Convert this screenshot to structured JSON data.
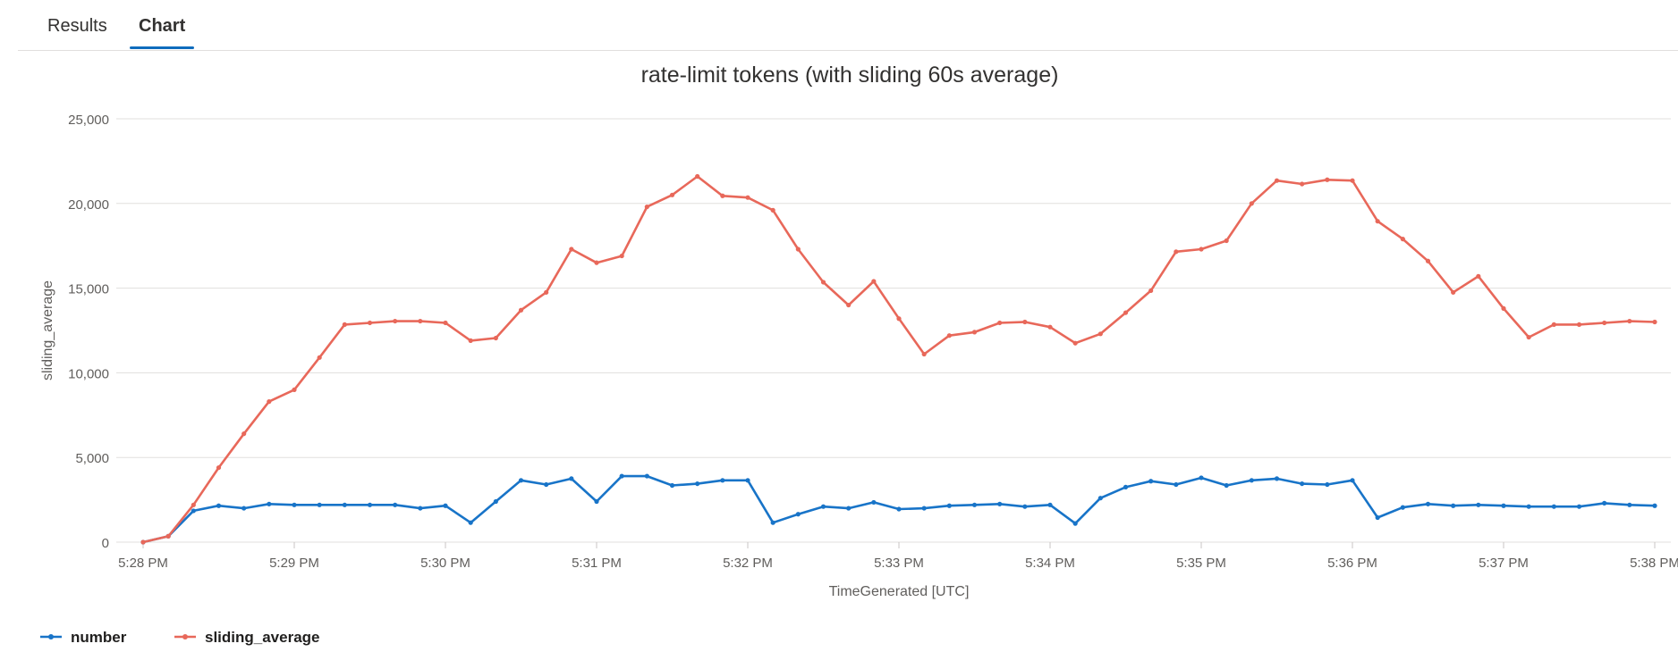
{
  "tabs": [
    {
      "label": "Results",
      "active": false
    },
    {
      "label": "Chart",
      "active": true
    }
  ],
  "chart_data": {
    "type": "line",
    "title": "rate-limit tokens (with sliding 60s average)",
    "xlabel": "TimeGenerated [UTC]",
    "ylabel": "sliding_average",
    "ylim": [
      0,
      25000
    ],
    "yticks": [
      0,
      5000,
      10000,
      15000,
      20000,
      25000
    ],
    "ytick_labels": [
      "0",
      "5,000",
      "10,000",
      "15,000",
      "20,000",
      "25,000"
    ],
    "xticks": [
      "5:28 PM",
      "5:29 PM",
      "5:30 PM",
      "5:31 PM",
      "5:32 PM",
      "5:33 PM",
      "5:34 PM",
      "5:35 PM",
      "5:36 PM",
      "5:37 PM",
      "5:38 PM"
    ],
    "x_start": "5:28 PM",
    "x_step_seconds": 10,
    "grid": true,
    "legend": "bottom-left",
    "series": [
      {
        "name": "number",
        "color": "#1874c8",
        "values": [
          0,
          350,
          1850,
          2150,
          2000,
          2250,
          2200,
          2200,
          2200,
          2200,
          2200,
          2000,
          2150,
          1150,
          2400,
          3650,
          3400,
          3750,
          2400,
          3900,
          3900,
          3350,
          3450,
          3650,
          3650,
          1150,
          1650,
          2100,
          2000,
          2350,
          1950,
          2000,
          2150,
          2200,
          2250,
          2100,
          2200,
          1100,
          2600,
          3250,
          3600,
          3400,
          3800,
          3350,
          3650,
          3750,
          3450,
          3400,
          3650,
          1450,
          2050,
          2250,
          2150,
          2200,
          2150,
          2100,
          2100,
          2100,
          2300,
          2200,
          2150
        ]
      },
      {
        "name": "sliding_average",
        "color": "#e8685a",
        "values": [
          0,
          350,
          2200,
          4400,
          6400,
          8300,
          9000,
          10900,
          12850,
          12950,
          13050,
          13050,
          12950,
          11900,
          12050,
          13700,
          14750,
          17300,
          16500,
          16900,
          19800,
          20500,
          21600,
          20450,
          20350,
          19600,
          17300,
          15350,
          14000,
          15400,
          13200,
          11100,
          12200,
          12400,
          12950,
          13000,
          12700,
          11750,
          12300,
          13550,
          14850,
          17150,
          17300,
          17800,
          20000,
          21350,
          21150,
          21400,
          21350,
          18950,
          17900,
          16600,
          14750,
          15700,
          13800,
          12100,
          12850,
          12850,
          12950,
          13050,
          13000
        ]
      }
    ]
  }
}
